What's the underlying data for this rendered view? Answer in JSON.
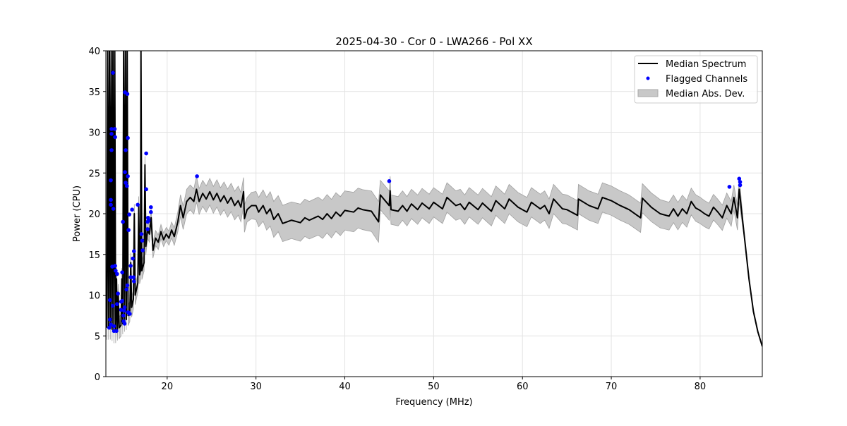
{
  "chart_data": {
    "type": "line",
    "title": "2025-04-30 - Cor 0 - LWA266 - Pol XX",
    "xlabel": "Frequency (MHz)",
    "ylabel": "Power (CPU)",
    "xlim": [
      13.1,
      87.0
    ],
    "ylim": [
      0,
      40
    ],
    "xticks": [
      20,
      30,
      40,
      50,
      60,
      70,
      80
    ],
    "yticks": [
      0,
      5,
      10,
      15,
      20,
      25,
      30,
      35,
      40
    ],
    "grid": true,
    "legend": {
      "placement": "top-right",
      "entries": [
        "Median Spectrum",
        "Flagged Channels",
        "Median Abs. Dev."
      ]
    },
    "colors": {
      "median": "#000000",
      "flagged": "#0000ff",
      "mad": "#c8c8c8",
      "mad_edge": "#a0a0a0"
    },
    "median_spectrum": [
      [
        13.2,
        6
      ],
      [
        13.3,
        40
      ],
      [
        13.4,
        6
      ],
      [
        13.5,
        40
      ],
      [
        13.6,
        6
      ],
      [
        13.7,
        40
      ],
      [
        13.8,
        5.8
      ],
      [
        13.9,
        40
      ],
      [
        14.0,
        5.5
      ],
      [
        14.1,
        40
      ],
      [
        14.2,
        5.5
      ],
      [
        14.3,
        12
      ],
      [
        14.4,
        5.8
      ],
      [
        14.5,
        10
      ],
      [
        14.6,
        6
      ],
      [
        14.8,
        6.3
      ],
      [
        14.9,
        12
      ],
      [
        15.0,
        6.5
      ],
      [
        15.1,
        40
      ],
      [
        15.2,
        6.8
      ],
      [
        15.3,
        40
      ],
      [
        15.4,
        7
      ],
      [
        15.5,
        40
      ],
      [
        15.6,
        7.5
      ],
      [
        15.8,
        8
      ],
      [
        15.9,
        14
      ],
      [
        16.0,
        8.5
      ],
      [
        16.2,
        9.5
      ],
      [
        16.3,
        20
      ],
      [
        16.4,
        10
      ],
      [
        16.7,
        11.5
      ],
      [
        16.8,
        21
      ],
      [
        16.9,
        12.5
      ],
      [
        17.0,
        13
      ],
      [
        17.05,
        40
      ],
      [
        17.15,
        13
      ],
      [
        17.4,
        14
      ],
      [
        17.5,
        26
      ],
      [
        17.6,
        16
      ],
      [
        17.8,
        18
      ],
      [
        18.0,
        17.5
      ],
      [
        18.2,
        19.5
      ],
      [
        18.4,
        15.5
      ],
      [
        18.7,
        17
      ],
      [
        19,
        16.5
      ],
      [
        19.3,
        17.8
      ],
      [
        19.6,
        16.8
      ],
      [
        19.9,
        17.5
      ],
      [
        20.2,
        17
      ],
      [
        20.5,
        18
      ],
      [
        20.8,
        17.2
      ],
      [
        21.2,
        19
      ],
      [
        21.5,
        21
      ],
      [
        21.8,
        19.5
      ],
      [
        22.2,
        21.5
      ],
      [
        22.6,
        22
      ],
      [
        23.0,
        21.5
      ],
      [
        23.3,
        23
      ],
      [
        23.6,
        21.5
      ],
      [
        24,
        22.5
      ],
      [
        24.4,
        21.8
      ],
      [
        24.8,
        22.7
      ],
      [
        25.2,
        21.7
      ],
      [
        25.6,
        22.5
      ],
      [
        26,
        21.5
      ],
      [
        26.4,
        22.2
      ],
      [
        26.8,
        21.3
      ],
      [
        27.2,
        22
      ],
      [
        27.6,
        21
      ],
      [
        28,
        21.6
      ],
      [
        28.3,
        20.8
      ],
      [
        28.6,
        22.7
      ],
      [
        28.7,
        19.4
      ],
      [
        29,
        20.5
      ],
      [
        29.5,
        21
      ],
      [
        30,
        21
      ],
      [
        30.3,
        20.2
      ],
      [
        30.8,
        21
      ],
      [
        31.2,
        20
      ],
      [
        31.6,
        20.6
      ],
      [
        32,
        19.3
      ],
      [
        32.5,
        20
      ],
      [
        33,
        18.8
      ],
      [
        34,
        19.2
      ],
      [
        35,
        18.9
      ],
      [
        35.5,
        19.5
      ],
      [
        36,
        19.2
      ],
      [
        37,
        19.7
      ],
      [
        37.5,
        19.3
      ],
      [
        38,
        20
      ],
      [
        38.5,
        19.4
      ],
      [
        39,
        20.2
      ],
      [
        39.5,
        19.7
      ],
      [
        40,
        20.4
      ],
      [
        41,
        20.2
      ],
      [
        41.5,
        20.7
      ],
      [
        42,
        20.5
      ],
      [
        43,
        20.3
      ],
      [
        43.8,
        19
      ],
      [
        44,
        22.3
      ],
      [
        45,
        21
      ],
      [
        45.1,
        22.8
      ],
      [
        45.2,
        20.5
      ],
      [
        46,
        20.3
      ],
      [
        46.5,
        21
      ],
      [
        47,
        20.3
      ],
      [
        47.5,
        21.2
      ],
      [
        48.2,
        20.5
      ],
      [
        48.7,
        21.3
      ],
      [
        49.5,
        20.6
      ],
      [
        50,
        21.4
      ],
      [
        51,
        20.6
      ],
      [
        51.5,
        22
      ],
      [
        52.5,
        21
      ],
      [
        53,
        21.2
      ],
      [
        53.5,
        20.5
      ],
      [
        54,
        21.4
      ],
      [
        55,
        20.5
      ],
      [
        55.5,
        21.3
      ],
      [
        56.5,
        20.3
      ],
      [
        57,
        21.6
      ],
      [
        58,
        20.6
      ],
      [
        58.5,
        21.8
      ],
      [
        59.5,
        20.8
      ],
      [
        60.5,
        20.2
      ],
      [
        61,
        21.4
      ],
      [
        62,
        20.6
      ],
      [
        62.5,
        21
      ],
      [
        63,
        20
      ],
      [
        63.5,
        21.8
      ],
      [
        64.5,
        20.6
      ],
      [
        65,
        20.5
      ],
      [
        66.2,
        19.8
      ],
      [
        66.3,
        21.8
      ],
      [
        67.5,
        21
      ],
      [
        68.5,
        20.6
      ],
      [
        69,
        22
      ],
      [
        70,
        21.6
      ],
      [
        71,
        21
      ],
      [
        72,
        20.5
      ],
      [
        73.3,
        19.5
      ],
      [
        73.5,
        21.9
      ],
      [
        74.5,
        20.8
      ],
      [
        75.5,
        20
      ],
      [
        76.5,
        19.7
      ],
      [
        77,
        20.6
      ],
      [
        77.5,
        19.7
      ],
      [
        78,
        20.6
      ],
      [
        78.5,
        20
      ],
      [
        79,
        21.5
      ],
      [
        79.5,
        20.7
      ],
      [
        80,
        20.4
      ],
      [
        80.5,
        20
      ],
      [
        81,
        19.7
      ],
      [
        81.5,
        20.8
      ],
      [
        82,
        20.2
      ],
      [
        82.5,
        19.5
      ],
      [
        83,
        21
      ],
      [
        83.5,
        20
      ],
      [
        83.8,
        22
      ],
      [
        84.2,
        19.5
      ],
      [
        84.4,
        23
      ],
      [
        84.6,
        21
      ],
      [
        85,
        17
      ],
      [
        85.5,
        12
      ],
      [
        86,
        8
      ],
      [
        86.5,
        5.5
      ],
      [
        87,
        3.7
      ]
    ],
    "median_abs_dev": [
      [
        13,
        1.5
      ],
      [
        20,
        0.8
      ],
      [
        22,
        1.5
      ],
      [
        28.5,
        1.8
      ],
      [
        29,
        1.5
      ],
      [
        32,
        2.2
      ],
      [
        43.8,
        2.5
      ],
      [
        44,
        1.8
      ],
      [
        73,
        1.8
      ],
      [
        84.5,
        1.5
      ],
      [
        85,
        0.1
      ],
      [
        87,
        0
      ]
    ],
    "flagged_channels": [
      [
        13.9,
        37.3
      ],
      [
        13.74,
        30.4
      ],
      [
        14.09,
        30.4
      ],
      [
        13.74,
        29.8
      ],
      [
        14.14,
        29.4
      ],
      [
        13.74,
        27.8
      ],
      [
        13.66,
        24.1
      ],
      [
        13.66,
        21.7
      ],
      [
        13.66,
        21.1
      ],
      [
        13.94,
        20.6
      ],
      [
        13.82,
        13.5
      ],
      [
        14.14,
        13.6
      ],
      [
        14.2,
        13.0
      ],
      [
        14.36,
        12.6
      ],
      [
        14.46,
        10.2
      ],
      [
        13.56,
        9.4
      ],
      [
        13.88,
        8.7
      ],
      [
        14.36,
        8.9
      ],
      [
        13.56,
        7.0
      ],
      [
        13.66,
        6.4
      ],
      [
        13.48,
        6.0
      ],
      [
        14.01,
        6.2
      ],
      [
        14.01,
        5.6
      ],
      [
        14.28,
        5.6
      ],
      [
        15.25,
        34.9
      ],
      [
        15.52,
        34.7
      ],
      [
        15.33,
        27.8
      ],
      [
        15.57,
        29.3
      ],
      [
        15.25,
        25.1
      ],
      [
        15.57,
        24.6
      ],
      [
        15.33,
        23.8
      ],
      [
        15.47,
        23.4
      ],
      [
        16.05,
        20.5
      ],
      [
        16.69,
        21.1
      ],
      [
        15.73,
        19.9
      ],
      [
        15.02,
        19.0
      ],
      [
        15.65,
        18.0
      ],
      [
        16.26,
        15.4
      ],
      [
        16.13,
        14.5
      ],
      [
        15.89,
        13.6
      ],
      [
        14.94,
        12.8
      ],
      [
        15.89,
        12.2
      ],
      [
        16.21,
        12.2
      ],
      [
        16.26,
        11.7
      ],
      [
        15.52,
        11.2
      ],
      [
        15.42,
        10.7
      ],
      [
        14.94,
        9.3
      ],
      [
        14.83,
        9.2
      ],
      [
        14.81,
        8.2
      ],
      [
        15.21,
        8.5
      ],
      [
        15.15,
        8.1
      ],
      [
        15.07,
        7.5
      ],
      [
        15.1,
        6.8
      ],
      [
        15.21,
        6.5
      ],
      [
        15.6,
        7.9
      ],
      [
        15.79,
        7.7
      ],
      [
        15.68,
        7.85
      ],
      [
        17.64,
        27.4
      ],
      [
        17.64,
        23.0
      ],
      [
        17.11,
        17.5
      ],
      [
        17.19,
        16.7
      ],
      [
        17.24,
        15.5
      ],
      [
        17.8,
        19.0
      ],
      [
        17.85,
        19.5
      ],
      [
        17.91,
        19.2
      ],
      [
        17.8,
        18.1
      ],
      [
        18.17,
        20.8
      ],
      [
        18.17,
        20.2
      ],
      [
        23.36,
        24.6
      ],
      [
        45.0,
        24.0
      ],
      [
        83.3,
        23.3
      ],
      [
        84.4,
        24.3
      ],
      [
        84.5,
        23.9
      ],
      [
        84.5,
        23.5
      ]
    ]
  }
}
